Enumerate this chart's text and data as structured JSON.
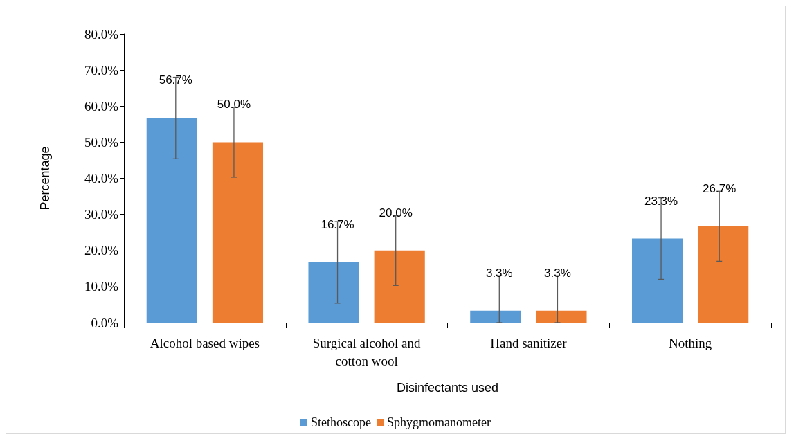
{
  "chart_data": {
    "type": "bar",
    "xlabel": "Disinfectants used",
    "ylabel": "Percentage",
    "categories": [
      "Alcohol based wipes",
      "Surgical alcohol and\ncotton wool",
      "Hand sanitizer",
      "Nothing"
    ],
    "series": [
      {
        "name": "Stethoscope",
        "color": "#5b9bd5",
        "values": [
          56.7,
          16.7,
          3.3,
          23.3
        ],
        "errors": [
          [
            45.4,
            68.0
          ],
          [
            5.4,
            28.0
          ],
          [
            0,
            13.0
          ],
          [
            12.0,
            34.6
          ]
        ],
        "value_labels": [
          "56.7%",
          "16.7%",
          "3.3%",
          "23.3%"
        ]
      },
      {
        "name": "Sphygmomanometer",
        "color": "#ed7d31",
        "values": [
          50.0,
          20.0,
          3.3,
          26.7
        ],
        "errors": [
          [
            40.3,
            59.7
          ],
          [
            10.3,
            29.7
          ],
          [
            0,
            13.0
          ],
          [
            17.0,
            36.4
          ]
        ],
        "value_labels": [
          "50.0%",
          "20.0%",
          "3.3%",
          "26.7%"
        ]
      }
    ],
    "ylim": [
      0,
      80
    ],
    "yticks": [
      {
        "value": 0,
        "label": "0.0%"
      },
      {
        "value": 10,
        "label": "10.0%"
      },
      {
        "value": 20,
        "label": "20.0%"
      },
      {
        "value": 30,
        "label": "30.0%"
      },
      {
        "value": 40,
        "label": "40.0%"
      },
      {
        "value": 50,
        "label": "50.0%"
      },
      {
        "value": 60,
        "label": "60.0%"
      },
      {
        "value": 70,
        "label": "70.0%"
      },
      {
        "value": 80,
        "label": "80.0%"
      }
    ],
    "grid": false,
    "legend": "bottom"
  }
}
